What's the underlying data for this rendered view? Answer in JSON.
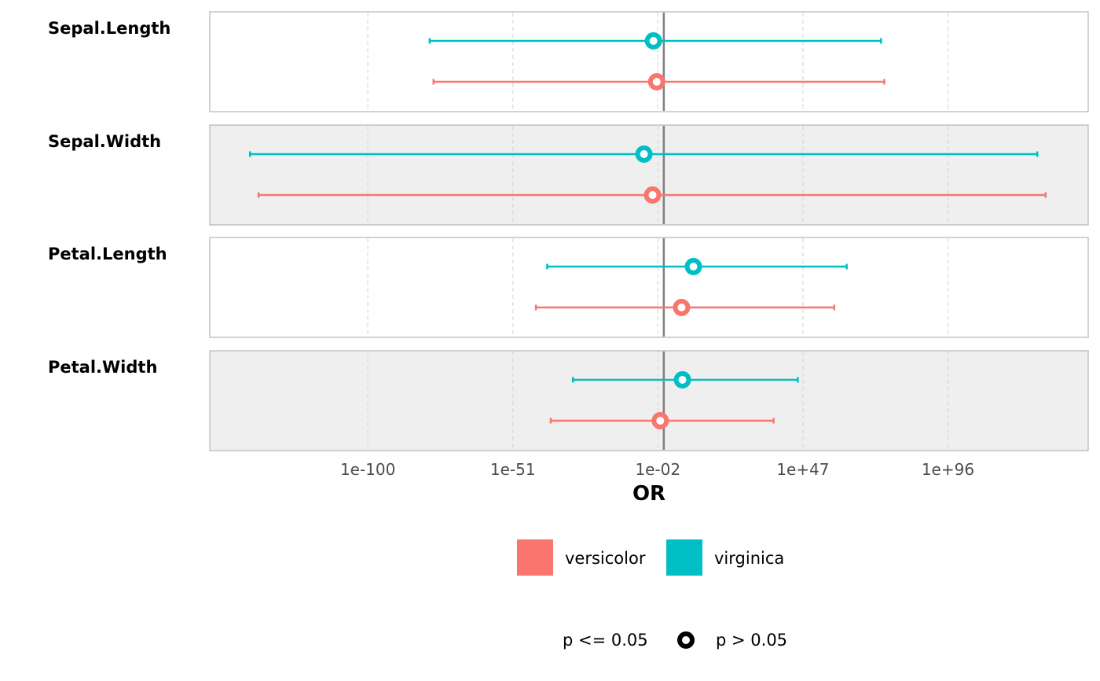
{
  "chart_data": {
    "type": "forest",
    "x_scale": "log10",
    "xlabel": "OR",
    "x_ticks": [
      {
        "value": -100,
        "label": "1e-100"
      },
      {
        "value": -51,
        "label": "1e-51"
      },
      {
        "value": -2,
        "label": "1e-02"
      },
      {
        "value": 47,
        "label": "1e+47"
      },
      {
        "value": 96,
        "label": "1e+96"
      }
    ],
    "xlim_log10": [
      -153.4,
      143.4
    ],
    "reference_line_log10": 0,
    "rows": [
      {
        "label": "Sepal.Length",
        "shaded": false
      },
      {
        "label": "Sepal.Width",
        "shaded": true
      },
      {
        "label": "Petal.Length",
        "shaded": false
      },
      {
        "label": "Petal.Width",
        "shaded": true
      }
    ],
    "series": [
      {
        "name": "virginica",
        "color": "#00BFC4",
        "points": [
          {
            "row": "Sepal.Length",
            "or_log10": -3.5,
            "ci_low_log10": -79.1,
            "ci_high_log10": 73.4,
            "p_gt_005": true
          },
          {
            "row": "Sepal.Width",
            "or_log10": -6.7,
            "ci_low_log10": -139.8,
            "ci_high_log10": 126.2,
            "p_gt_005": true
          },
          {
            "row": "Petal.Length",
            "or_log10": 10.0,
            "ci_low_log10": -39.4,
            "ci_high_log10": 61.8,
            "p_gt_005": true
          },
          {
            "row": "Petal.Width",
            "or_log10": 6.3,
            "ci_low_log10": -30.7,
            "ci_high_log10": 45.3,
            "p_gt_005": true
          }
        ]
      },
      {
        "name": "versicolor",
        "color": "#F8766D",
        "points": [
          {
            "row": "Sepal.Length",
            "or_log10": -2.4,
            "ci_low_log10": -77.8,
            "ci_high_log10": 74.5,
            "p_gt_005": true
          },
          {
            "row": "Sepal.Width",
            "or_log10": -3.8,
            "ci_low_log10": -136.9,
            "ci_high_log10": 129.0,
            "p_gt_005": true
          },
          {
            "row": "Petal.Length",
            "or_log10": 6.0,
            "ci_low_log10": -43.2,
            "ci_high_log10": 57.6,
            "p_gt_005": true
          },
          {
            "row": "Petal.Width",
            "or_log10": -1.2,
            "ci_low_log10": -38.2,
            "ci_high_log10": 37.1,
            "p_gt_005": true
          }
        ]
      }
    ],
    "legend": {
      "placement": "bottom",
      "color_entries": [
        {
          "label": "versicolor",
          "color": "#F8766D"
        },
        {
          "label": "virginica",
          "color": "#00BFC4"
        }
      ],
      "shape_entries": [
        {
          "label": "p <= 0.05"
        },
        {
          "label": "p > 0.05"
        }
      ]
    }
  }
}
